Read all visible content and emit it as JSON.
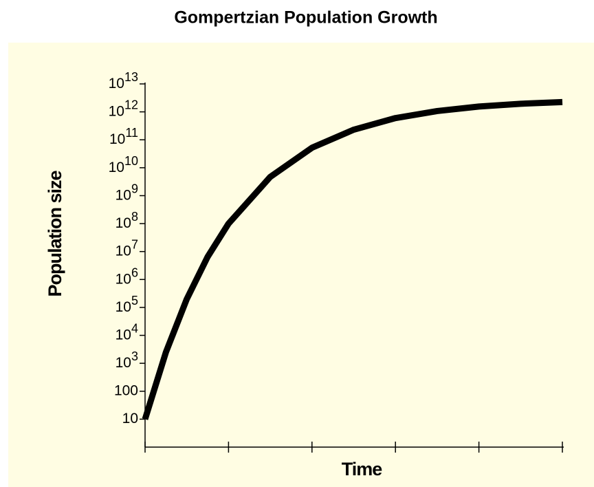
{
  "chart_data": {
    "type": "line",
    "title": "Gompertzian Population Growth",
    "xlabel": "Time",
    "ylabel": "Population size",
    "x": [
      0,
      0.25,
      0.5,
      0.75,
      1,
      1.5,
      2,
      2.5,
      3,
      3.5,
      4,
      4.5,
      5
    ],
    "series": [
      {
        "color": "#000000",
        "values": [
          10,
          2500,
          200000,
          6500000,
          100000000,
          4700000000,
          52000000000,
          230000000000,
          600000000000,
          1070000000000,
          1550000000000,
          1950000000000,
          2240000000000
        ]
      }
    ],
    "xlim": [
      0,
      5
    ],
    "xticks": [
      0,
      1,
      2,
      3,
      4,
      5
    ],
    "ylim": [
      1,
      10000000000000
    ],
    "yscale": "log",
    "yticks": [
      10,
      100,
      {
        "value": 1000,
        "label": "10",
        "exponent": "3"
      },
      {
        "value": 10000,
        "label": "10",
        "exponent": "4"
      },
      {
        "value": 100000,
        "label": "10",
        "exponent": "5"
      },
      {
        "value": 1000000,
        "label": "10",
        "exponent": "6"
      },
      {
        "value": 10000000,
        "label": "10",
        "exponent": "7"
      },
      {
        "value": 100000000,
        "label": "10",
        "exponent": "8"
      },
      {
        "value": 1000000000,
        "label": "10",
        "exponent": "9"
      },
      {
        "value": 10000000000,
        "label": "10",
        "exponent": "10"
      },
      {
        "value": 100000000000,
        "label": "10",
        "exponent": "11"
      },
      {
        "value": 1000000000000,
        "label": "10",
        "exponent": "12"
      },
      {
        "value": 10000000000000,
        "label": "10",
        "exponent": "13"
      }
    ]
  }
}
